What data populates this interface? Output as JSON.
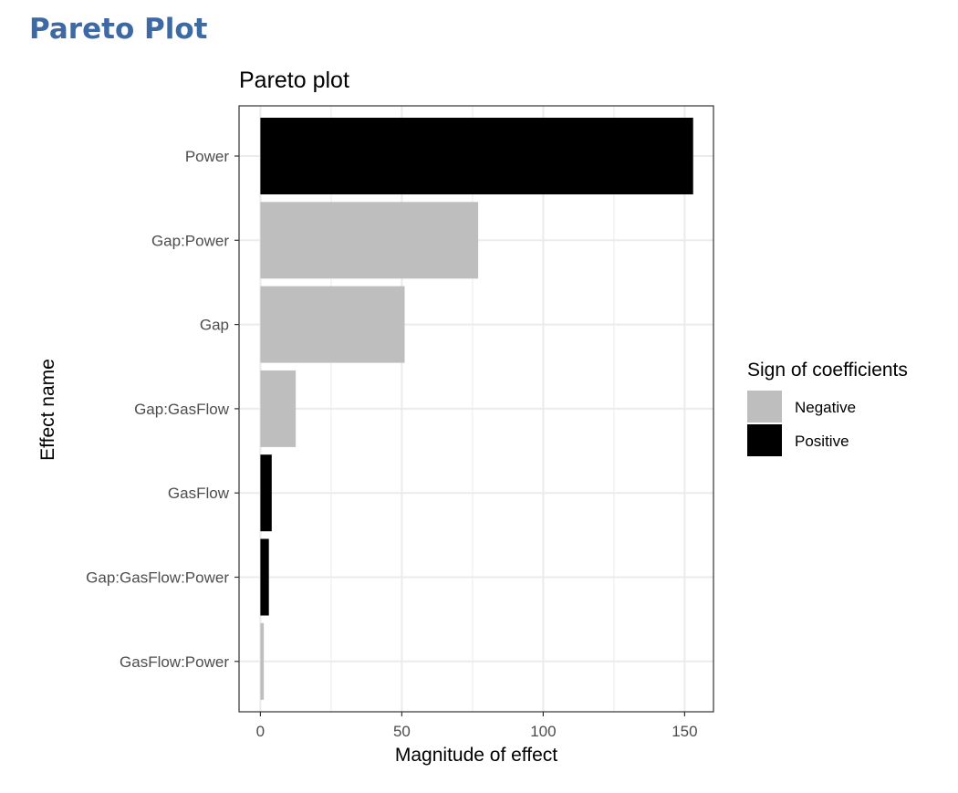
{
  "heading": "Pareto Plot",
  "colors": {
    "heading": "#3d6aa4",
    "negative": "#bebebe",
    "positive": "#000000",
    "grid": "#ebebeb",
    "panel_border": "#333333"
  },
  "chart_data": {
    "type": "bar",
    "orientation": "horizontal",
    "title": "Pareto plot",
    "xlabel": "Magnitude of effect",
    "ylabel": "Effect name",
    "categories": [
      "Power",
      "Gap:Power",
      "Gap",
      "Gap:GasFlow",
      "GasFlow",
      "Gap:GasFlow:Power",
      "GasFlow:Power"
    ],
    "values": [
      153,
      77,
      51,
      12.5,
      4,
      3,
      1.2
    ],
    "signs": [
      "Positive",
      "Negative",
      "Negative",
      "Negative",
      "Positive",
      "Positive",
      "Negative"
    ],
    "xlim": [
      0,
      160
    ],
    "xticks": [
      0,
      50,
      100,
      150
    ],
    "grid": true,
    "legend": {
      "title": "Sign of coefficients",
      "position": "right",
      "entries": [
        {
          "label": "Negative",
          "color": "#bebebe"
        },
        {
          "label": "Positive",
          "color": "#000000"
        }
      ]
    }
  }
}
